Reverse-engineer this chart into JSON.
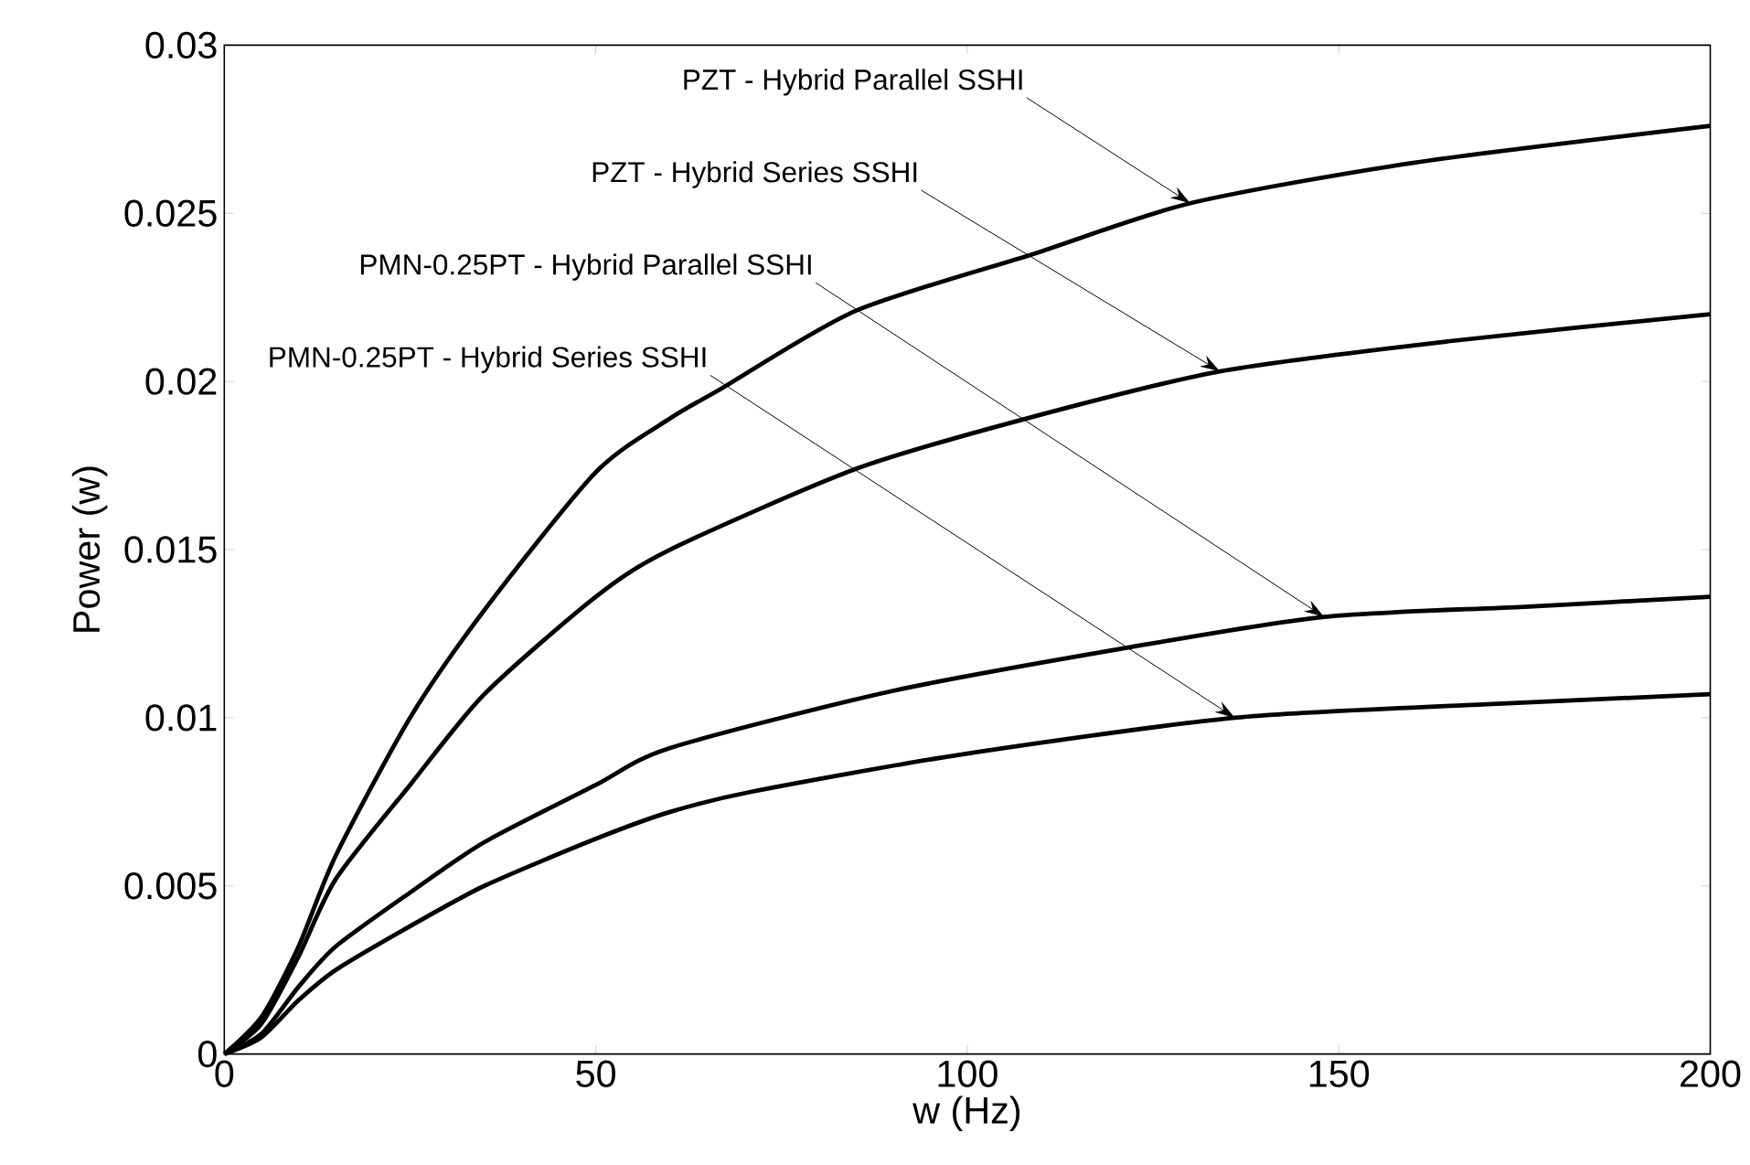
{
  "chart_data": {
    "type": "line",
    "xlabel": "w (Hz)",
    "ylabel": "Power (w)",
    "xlim": [
      0,
      200
    ],
    "ylim": [
      0,
      0.03
    ],
    "xticks": [
      0,
      50,
      100,
      150,
      200
    ],
    "yticks": [
      0,
      0.005,
      0.01,
      0.015,
      0.02,
      0.025,
      0.03
    ],
    "series": [
      {
        "color": "#000000",
        "x": [
          0,
          5,
          10,
          15,
          25,
          35,
          50,
          60,
          67,
          85,
          109,
          130,
          160,
          200
        ],
        "values": [
          0,
          0.0011,
          0.0032,
          0.0059,
          0.01,
          0.0132,
          0.0173,
          0.0189,
          0.0198,
          0.0221,
          0.0238,
          0.0253,
          0.0265,
          0.0276
        ]
      },
      {
        "color": "#000000",
        "x": [
          0,
          5,
          10,
          15,
          25,
          35,
          50,
          60,
          85,
          108,
          134,
          165,
          200
        ],
        "values": [
          0,
          0.0009,
          0.0029,
          0.0052,
          0.008,
          0.0107,
          0.0136,
          0.015,
          0.0174,
          0.0189,
          0.0203,
          0.0212,
          0.022
        ]
      },
      {
        "color": "#000000",
        "x": [
          0,
          5,
          10,
          15,
          25,
          35,
          50,
          60,
          90,
          122,
          148,
          175,
          200
        ],
        "values": [
          0,
          0.0006,
          0.002,
          0.0032,
          0.0048,
          0.0063,
          0.008,
          0.0091,
          0.0108,
          0.0121,
          0.013,
          0.0133,
          0.0136
        ]
      },
      {
        "color": "#000000",
        "x": [
          0,
          5,
          10,
          15,
          25,
          35,
          50,
          60,
          71,
          99,
          136,
          170,
          200
        ],
        "values": [
          0,
          0.0005,
          0.0016,
          0.0025,
          0.0038,
          0.005,
          0.0064,
          0.0072,
          0.0078,
          0.0089,
          0.01,
          0.0104,
          0.0107
        ]
      }
    ],
    "annotations": [
      {
        "text": "PZT - Hybrid Parallel SSHI",
        "x": 130,
        "y": 0.0253
      },
      {
        "text": "PZT - Hybrid Series SSHI",
        "x": 134,
        "y": 0.0203
      },
      {
        "text": "PMN-0.25PT - Hybrid Parallel SSHI",
        "x": 148,
        "y": 0.013
      },
      {
        "text": "PMN-0.25PT - Hybrid Series SSHI",
        "x": 136,
        "y": 0.01
      }
    ]
  }
}
